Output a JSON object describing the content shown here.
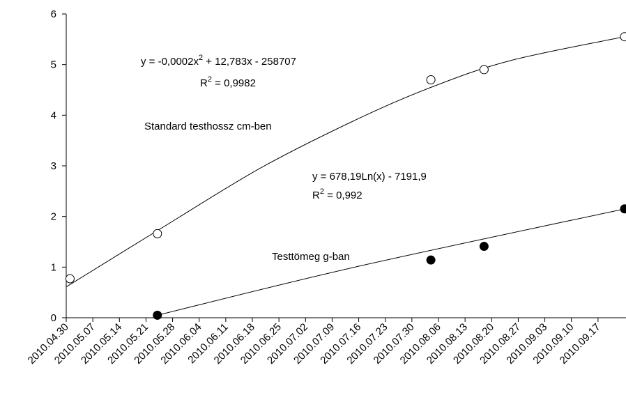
{
  "chart_data": {
    "type": "scatter",
    "x_type": "date",
    "xlim": [
      "2010-04-30",
      "2010-09-24"
    ],
    "ylim": [
      0,
      6
    ],
    "yticks": [
      0,
      1,
      2,
      3,
      4,
      5,
      6
    ],
    "xticks": [
      "2010.04.30",
      "2010.05.07",
      "2010.05.14",
      "2010.05.21",
      "2010.05.28",
      "2010.06.04",
      "2010.06.11",
      "2010.06.18",
      "2010.06.25",
      "2010.07.02",
      "2010.07.09",
      "2010.07.16",
      "2010.07.23",
      "2010.07.30",
      "2010.08.06",
      "2010.08.13",
      "2010.08.20",
      "2010.08.27",
      "2010.09.03",
      "2010.09.10",
      "2010.09.17"
    ],
    "grid": false,
    "legend": "none",
    "series": [
      {
        "name": "Standard testhossz cm-ben",
        "marker": "open-circle",
        "points": [
          {
            "x": "2010-05-01",
            "y": 0.77
          },
          {
            "x": "2010-05-24",
            "y": 1.66
          },
          {
            "x": "2010-08-04",
            "y": 4.7
          },
          {
            "x": "2010-08-18",
            "y": 4.9
          },
          {
            "x": "2010-09-24",
            "y": 5.55
          }
        ],
        "trendline": {
          "kind": "polynomial",
          "x_start": "2010-04-30",
          "x_end": "2010-09-24",
          "y_start": 0.61,
          "y_end": 5.55
        },
        "equation": {
          "text": "y = -0,0002x",
          "superscript": "2",
          "suffix": " + 12,783x - 258707"
        },
        "r2": {
          "prefix": "R",
          "superscript": "2",
          "text": " = 0,9982"
        }
      },
      {
        "name": "Testtömeg g-ban",
        "marker": "filled-circle",
        "points": [
          {
            "x": "2010-05-24",
            "y": 0.05
          },
          {
            "x": "2010-08-04",
            "y": 1.14
          },
          {
            "x": "2010-08-18",
            "y": 1.41
          },
          {
            "x": "2010-09-24",
            "y": 2.15
          }
        ],
        "trendline": {
          "kind": "logarithmic",
          "x_start": "2010-05-24",
          "x_end": "2010-09-24",
          "y_start": 0.05,
          "y_end": 2.15
        },
        "equation": {
          "text": "y = 678,19Ln(x) - 7191,9"
        },
        "r2": {
          "prefix": "R",
          "superscript": "2",
          "text": "  = 0,992"
        }
      }
    ]
  }
}
